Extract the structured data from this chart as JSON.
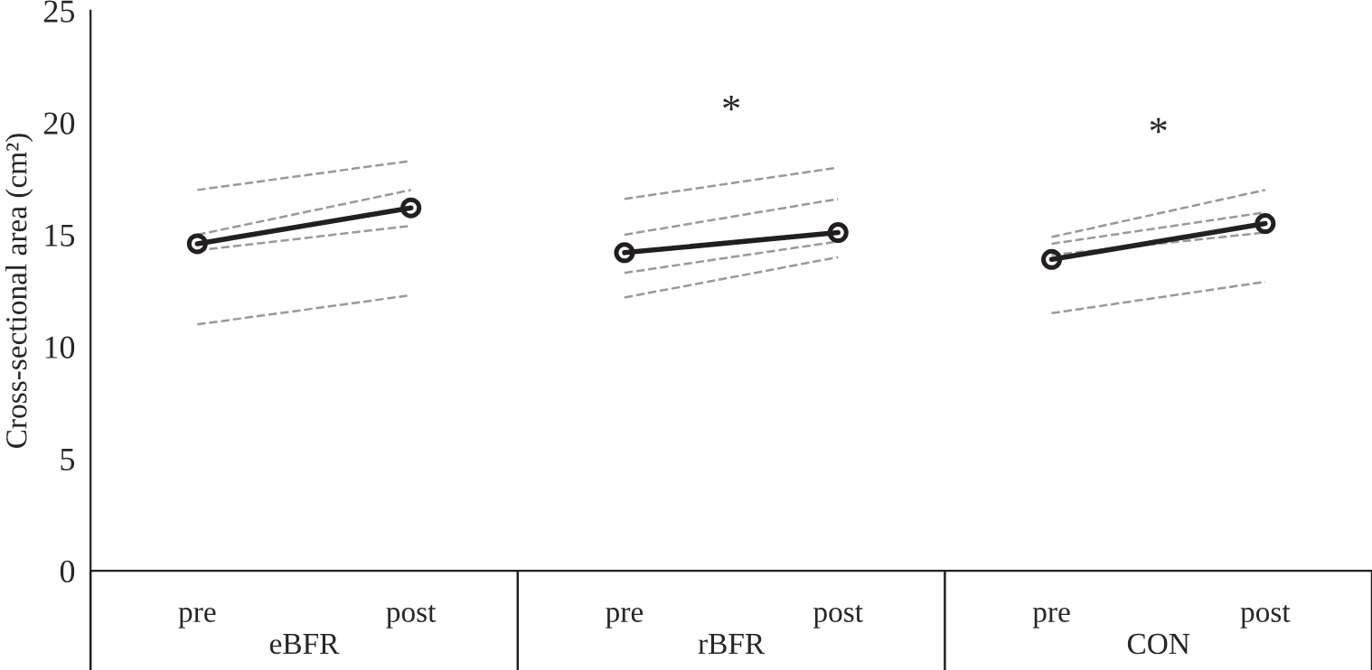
{
  "chart_data": {
    "type": "line",
    "ylabel": "Cross-sectional area (cm²)",
    "categories": [
      "pre",
      "post",
      "pre",
      "post",
      "pre",
      "post"
    ],
    "ylim": [
      0,
      25
    ],
    "yticks": [
      0,
      5,
      10,
      15,
      20,
      25
    ],
    "grid": false,
    "legend": false,
    "annotations": [
      "eBFR",
      "rBFR",
      "CON",
      "*",
      "*"
    ],
    "series": [
      {
        "color": "#999999",
        "line_style": "dashed",
        "marker": "none",
        "values": [
          17.0,
          18.3,
          null,
          null,
          null,
          null
        ]
      },
      {
        "color": "#999999",
        "line_style": "dashed",
        "marker": "none",
        "values": [
          15.0,
          17.0,
          null,
          null,
          null,
          null
        ]
      },
      {
        "color": "#999999",
        "line_style": "dashed",
        "marker": "none",
        "values": [
          14.3,
          15.4,
          null,
          null,
          null,
          null
        ]
      },
      {
        "color": "#999999",
        "line_style": "dashed",
        "marker": "none",
        "values": [
          11.0,
          12.3,
          null,
          null,
          null,
          null
        ]
      },
      {
        "color": "#999999",
        "line_style": "dashed",
        "marker": "none",
        "values": [
          null,
          null,
          16.6,
          18.0,
          null,
          null
        ]
      },
      {
        "color": "#999999",
        "line_style": "dashed",
        "marker": "none",
        "values": [
          null,
          null,
          15.0,
          16.6,
          null,
          null
        ]
      },
      {
        "color": "#999999",
        "line_style": "dashed",
        "marker": "none",
        "values": [
          null,
          null,
          13.3,
          14.7,
          null,
          null
        ]
      },
      {
        "color": "#999999",
        "line_style": "dashed",
        "marker": "none",
        "values": [
          null,
          null,
          12.2,
          14.0,
          null,
          null
        ]
      },
      {
        "color": "#999999",
        "line_style": "dashed",
        "marker": "none",
        "values": [
          null,
          null,
          null,
          null,
          14.9,
          17.0
        ]
      },
      {
        "color": "#999999",
        "line_style": "dashed",
        "marker": "none",
        "values": [
          null,
          null,
          null,
          null,
          14.6,
          16.0
        ]
      },
      {
        "color": "#999999",
        "line_style": "dashed",
        "marker": "none",
        "values": [
          null,
          null,
          null,
          null,
          14.1,
          15.1
        ]
      },
      {
        "color": "#999999",
        "line_style": "dashed",
        "marker": "none",
        "values": [
          null,
          null,
          null,
          null,
          11.5,
          12.9
        ]
      },
      {
        "color": "#231f20",
        "line_style": "solid",
        "marker": "circle",
        "values": [
          14.6,
          16.2,
          null,
          null,
          null,
          null
        ]
      },
      {
        "color": "#221e1f",
        "line_style": "solid",
        "marker": "circle",
        "values": [
          null,
          null,
          14.2,
          15.1,
          null,
          null
        ]
      },
      {
        "color": "#241f21",
        "line_style": "solid",
        "marker": "circle",
        "values": [
          null,
          null,
          null,
          null,
          13.9,
          15.5
        ]
      }
    ]
  }
}
